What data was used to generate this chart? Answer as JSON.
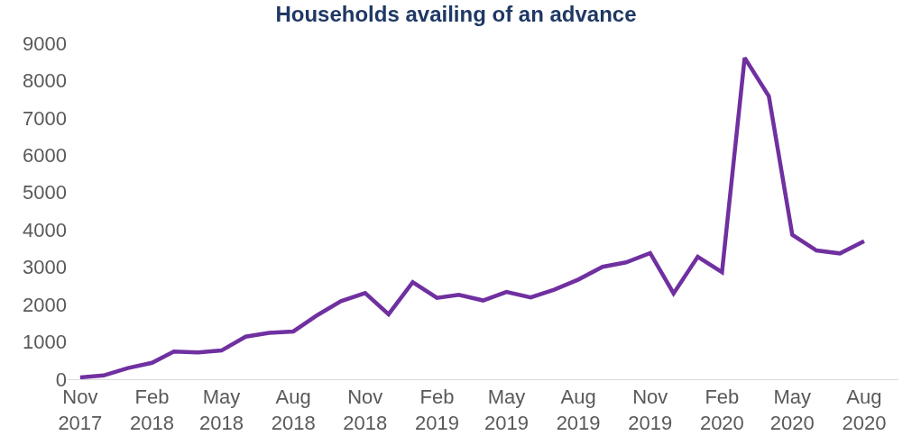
{
  "chart_data": {
    "type": "line",
    "title": "Households availing of an advance",
    "x": [
      "2017-11",
      "2017-12",
      "2018-01",
      "2018-02",
      "2018-03",
      "2018-04",
      "2018-05",
      "2018-06",
      "2018-07",
      "2018-08",
      "2018-09",
      "2018-10",
      "2018-11",
      "2018-12",
      "2019-01",
      "2019-02",
      "2019-03",
      "2019-04",
      "2019-05",
      "2019-06",
      "2019-07",
      "2019-08",
      "2019-09",
      "2019-10",
      "2019-11",
      "2019-12",
      "2020-01",
      "2020-02",
      "2020-03",
      "2020-04",
      "2020-05",
      "2020-06",
      "2020-07",
      "2020-08"
    ],
    "series": [
      {
        "color": "#7030a0",
        "values": [
          50,
          100,
          300,
          440,
          740,
          720,
          770,
          1140,
          1240,
          1280,
          1720,
          2090,
          2310,
          1740,
          2600,
          2180,
          2260,
          2110,
          2340,
          2190,
          2400,
          2670,
          3010,
          3130,
          3380,
          2300,
          3280,
          2870,
          8610,
          7580,
          3870,
          3450,
          3370,
          3700
        ]
      }
    ],
    "xlim": [
      "2017-10-16",
      "2020-09-14"
    ],
    "xticks": [
      {
        "value": "2017-11",
        "label": "Nov\n2017"
      },
      {
        "value": "2018-02",
        "label": "Feb\n2018"
      },
      {
        "value": "2018-05",
        "label": "May\n2018"
      },
      {
        "value": "2018-08",
        "label": "Aug\n2018"
      },
      {
        "value": "2018-11",
        "label": "Nov\n2018"
      },
      {
        "value": "2019-02",
        "label": "Feb\n2019"
      },
      {
        "value": "2019-05",
        "label": "May\n2019"
      },
      {
        "value": "2019-08",
        "label": "Aug\n2019"
      },
      {
        "value": "2019-11",
        "label": "Nov\n2019"
      },
      {
        "value": "2020-02",
        "label": "Feb\n2020"
      },
      {
        "value": "2020-05",
        "label": "May\n2020"
      },
      {
        "value": "2020-08",
        "label": "Aug\n2020"
      }
    ],
    "ylim": [
      0,
      9000
    ],
    "yticks": [
      0,
      1000,
      2000,
      3000,
      4000,
      5000,
      6000,
      7000,
      8000,
      9000
    ],
    "grid": false,
    "marker": "none",
    "line_style": "solid"
  }
}
